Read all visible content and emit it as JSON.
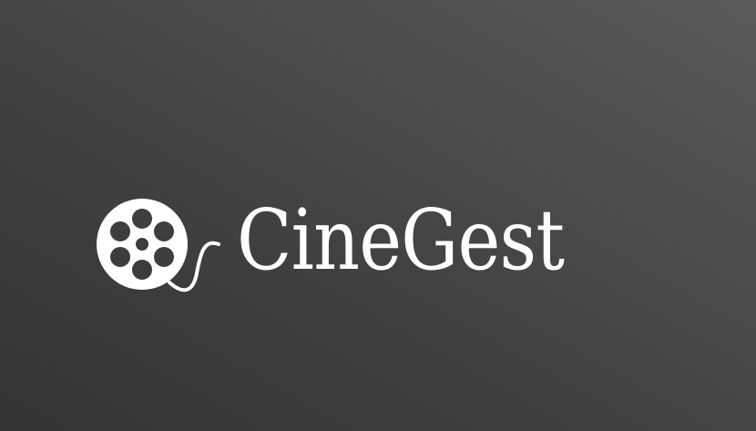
{
  "logo": {
    "brand_name": "CineGest",
    "icon": "film-reel-icon",
    "text_color": "#ffffff"
  },
  "background": {
    "color_dark": "#333333",
    "color_light": "#5a5a5a"
  }
}
